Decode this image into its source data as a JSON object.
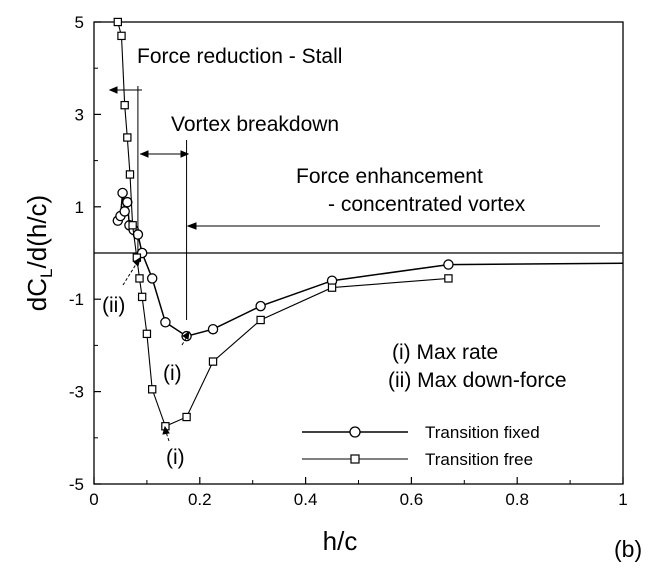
{
  "chart_data": {
    "type": "line",
    "xlabel": "h/c",
    "ylabel": {
      "base": "dC",
      "sub": "L",
      "tail": "/d(h/c)"
    },
    "xlim": [
      0,
      1
    ],
    "ylim": [
      -5,
      5
    ],
    "xticks": [
      0,
      0.2,
      0.4,
      0.6,
      0.8,
      1
    ],
    "xtick_labels": [
      "0",
      "0.2",
      "0.4",
      "0.6",
      "0.8",
      "1"
    ],
    "yticks": [
      -5,
      -3,
      -1,
      1,
      3,
      5
    ],
    "ytick_labels": [
      "-5",
      "-3",
      "-1",
      "1",
      "3",
      "5"
    ],
    "grid": false,
    "legend_position": "lower-right",
    "panel_label": "(b)",
    "series": [
      {
        "name": "Transition fixed",
        "marker": "circle",
        "x": [
          0.045,
          0.05,
          0.054,
          0.058,
          0.063,
          0.067,
          0.075,
          0.083,
          0.091,
          0.11,
          0.135,
          0.175,
          0.225,
          0.315,
          0.45,
          0.67,
          1.0
        ],
        "y": [
          0.7,
          0.8,
          1.3,
          0.9,
          1.1,
          0.6,
          0.5,
          0.4,
          0.0,
          -0.55,
          -1.5,
          -1.8,
          -1.65,
          -1.15,
          -0.6,
          -0.25,
          -0.22
        ]
      },
      {
        "name": "Transition free",
        "marker": "square",
        "x": [
          0.045,
          0.052,
          0.058,
          0.063,
          0.068,
          0.073,
          0.081,
          0.086,
          0.091,
          0.1,
          0.11,
          0.135,
          0.175,
          0.225,
          0.315,
          0.45,
          0.67
        ],
        "y": [
          5.0,
          4.7,
          3.2,
          2.5,
          1.7,
          0.6,
          -0.1,
          -0.55,
          -0.95,
          -1.75,
          -2.95,
          -3.75,
          -3.55,
          -2.35,
          -1.45,
          -0.75,
          -0.55
        ]
      }
    ],
    "reference_lines": {
      "horizontal_y": 0,
      "vertical_x": [
        0.083,
        0.175
      ]
    },
    "annotations": {
      "stall": "Force reduction - Stall",
      "vortex": "Vortex breakdown",
      "enh_line1": "Force enhancement",
      "enh_line2": "- concentrated vortex",
      "note1": "(i) Max rate",
      "note2": "(ii) Max down-force",
      "tag_i": "(i)",
      "tag_ii": "(ii)"
    }
  }
}
